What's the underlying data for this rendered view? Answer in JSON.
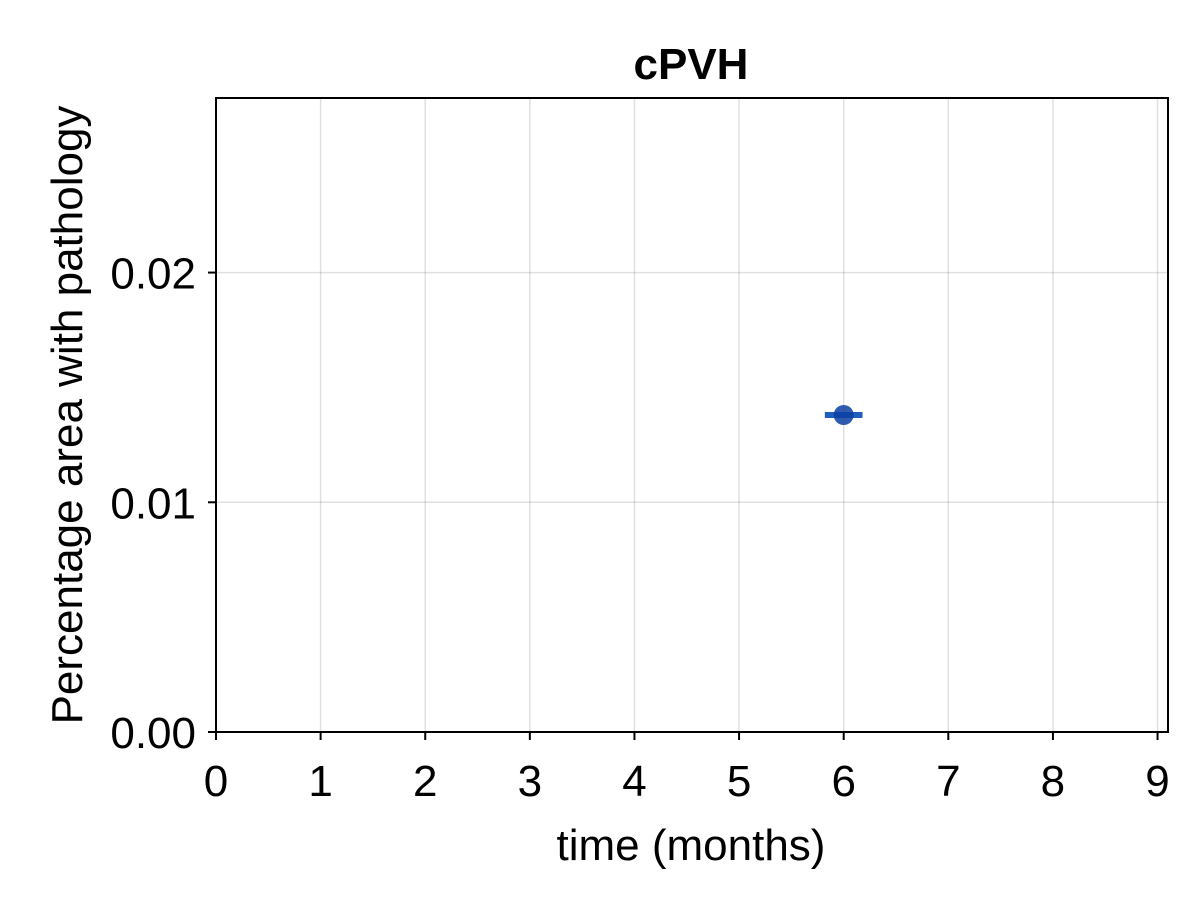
{
  "chart_data": {
    "type": "scatter",
    "title": "cPVH",
    "xlabel": "time (months)",
    "ylabel": "Percentage area with pathology",
    "xlim": [
      0,
      9.1
    ],
    "ylim": [
      0,
      0.0276
    ],
    "x_ticks": [
      0,
      1,
      2,
      3,
      4,
      5,
      6,
      7,
      8,
      9
    ],
    "x_tick_labels": [
      "0",
      "1",
      "2",
      "3",
      "4",
      "5",
      "6",
      "7",
      "8",
      "9"
    ],
    "y_ticks": [
      0,
      0.01,
      0.02
    ],
    "y_tick_labels": [
      "0.00",
      "0.01",
      "0.02"
    ],
    "grid": true,
    "series": [
      {
        "x": [
          6
        ],
        "y": [
          0.0138
        ],
        "error_bar_halfwidth_x": 0.18,
        "color": "#0a3fa0",
        "error_bar_color": "#1f5fbf"
      }
    ]
  }
}
